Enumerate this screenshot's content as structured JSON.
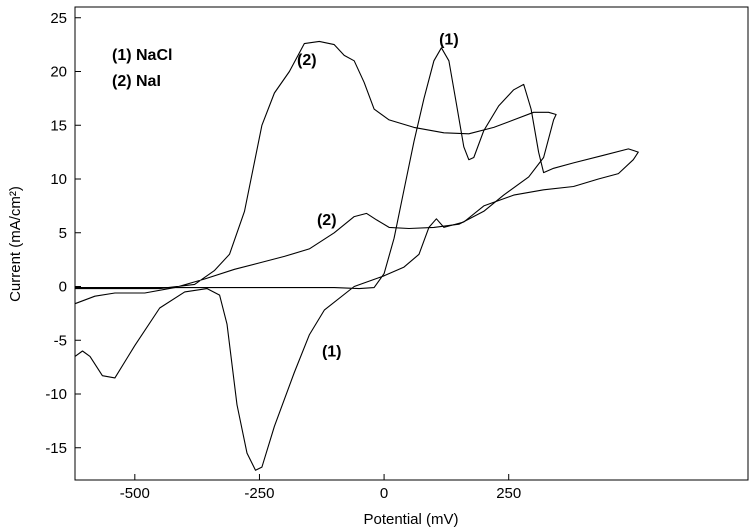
{
  "chart_data": {
    "type": "line",
    "title": "",
    "xlabel": "Potential (mV)",
    "ylabel": "Current (mA/cm²)",
    "xlim": [
      -620,
      730
    ],
    "ylim": [
      -18,
      26
    ],
    "xticks": [
      -500,
      -250,
      0,
      250
    ],
    "yticks": [
      -15,
      -10,
      -5,
      0,
      5,
      10,
      15,
      20,
      25
    ],
    "grid": false,
    "legend": {
      "placement": "top-left",
      "entries": [
        "(1) NaCl",
        "(2) NaI"
      ]
    },
    "series": [
      {
        "name": "(1) NaCl",
        "points": [
          [
            -620,
            -0.1
          ],
          [
            -500,
            -0.1
          ],
          [
            -400,
            -0.1
          ],
          [
            -300,
            -0.1
          ],
          [
            -200,
            -0.1
          ],
          [
            -100,
            -0.1
          ],
          [
            -50,
            -0.2
          ],
          [
            -20,
            -0.1
          ],
          [
            0,
            1.2
          ],
          [
            20,
            4.5
          ],
          [
            40,
            9
          ],
          [
            60,
            13.5
          ],
          [
            80,
            17.5
          ],
          [
            100,
            21
          ],
          [
            115,
            22.2
          ],
          [
            130,
            21
          ],
          [
            145,
            17
          ],
          [
            160,
            13
          ],
          [
            170,
            11.8
          ],
          [
            180,
            12
          ],
          [
            200,
            14.5
          ],
          [
            230,
            16.8
          ],
          [
            260,
            18.3
          ],
          [
            280,
            18.8
          ],
          [
            295,
            16.5
          ],
          [
            310,
            12.5
          ],
          [
            320,
            10.6
          ],
          [
            340,
            11
          ],
          [
            380,
            11.5
          ],
          [
            440,
            12.2
          ],
          [
            490,
            12.8
          ],
          [
            510,
            12.5
          ],
          [
            500,
            11.8
          ],
          [
            470,
            10.5
          ],
          [
            430,
            10
          ],
          [
            380,
            9.3
          ],
          [
            320,
            9
          ],
          [
            260,
            8.5
          ],
          [
            200,
            7.5
          ],
          [
            160,
            6
          ],
          [
            120,
            5.5
          ],
          [
            105,
            6.3
          ],
          [
            90,
            5.5
          ],
          [
            70,
            3
          ],
          [
            40,
            1.8
          ],
          [
            0,
            1
          ],
          [
            -60,
            0
          ],
          [
            -120,
            -2.2
          ],
          [
            -150,
            -4.5
          ],
          [
            -180,
            -8
          ],
          [
            -220,
            -13
          ],
          [
            -245,
            -16.8
          ],
          [
            -258,
            -17.1
          ],
          [
            -275,
            -15.5
          ],
          [
            -295,
            -11
          ],
          [
            -315,
            -3.5
          ],
          [
            -330,
            -0.8
          ],
          [
            -355,
            -0.2
          ],
          [
            -400,
            -0.5
          ],
          [
            -450,
            -2
          ],
          [
            -500,
            -5.5
          ],
          [
            -540,
            -8.5
          ],
          [
            -565,
            -8.3
          ],
          [
            -590,
            -6.5
          ],
          [
            -605,
            -6
          ],
          [
            -620,
            -6.5
          ]
        ]
      },
      {
        "name": "(2) NaI",
        "points": [
          [
            -620,
            -1.6
          ],
          [
            -580,
            -0.9
          ],
          [
            -540,
            -0.6
          ],
          [
            -480,
            -0.6
          ],
          [
            -420,
            -0.1
          ],
          [
            -360,
            0.7
          ],
          [
            -300,
            1.6
          ],
          [
            -250,
            2.2
          ],
          [
            -200,
            2.8
          ],
          [
            -150,
            3.5
          ],
          [
            -100,
            5
          ],
          [
            -60,
            6.5
          ],
          [
            -35,
            6.8
          ],
          [
            -15,
            6.2
          ],
          [
            10,
            5.5
          ],
          [
            50,
            5.4
          ],
          [
            100,
            5.5
          ],
          [
            150,
            5.8
          ],
          [
            200,
            7
          ],
          [
            240,
            8.5
          ],
          [
            290,
            10.2
          ],
          [
            320,
            12
          ],
          [
            340,
            15.5
          ],
          [
            345,
            16
          ],
          [
            330,
            16.2
          ],
          [
            300,
            16.2
          ],
          [
            260,
            15.5
          ],
          [
            220,
            14.8
          ],
          [
            170,
            14.2
          ],
          [
            120,
            14.3
          ],
          [
            60,
            14.8
          ],
          [
            10,
            15.5
          ],
          [
            -20,
            16.5
          ],
          [
            -40,
            19
          ],
          [
            -60,
            21
          ],
          [
            -80,
            21.5
          ],
          [
            -100,
            22.5
          ],
          [
            -130,
            22.8
          ],
          [
            -160,
            22.6
          ],
          [
            -190,
            20
          ],
          [
            -220,
            18
          ],
          [
            -245,
            15
          ],
          [
            -280,
            7
          ],
          [
            -310,
            3
          ],
          [
            -340,
            1.5
          ],
          [
            -380,
            0.2
          ],
          [
            -450,
            -0.2
          ],
          [
            -620,
            -0.2
          ]
        ]
      }
    ],
    "annotations": [
      {
        "text": "(1)",
        "x": 130,
        "y": 22.5
      },
      {
        "text": "(2)",
        "x": -155,
        "y": 20.6
      },
      {
        "text": "(2)",
        "x": -115,
        "y": 5.7
      },
      {
        "text": "(1)",
        "x": -105,
        "y": -6.5
      }
    ]
  }
}
